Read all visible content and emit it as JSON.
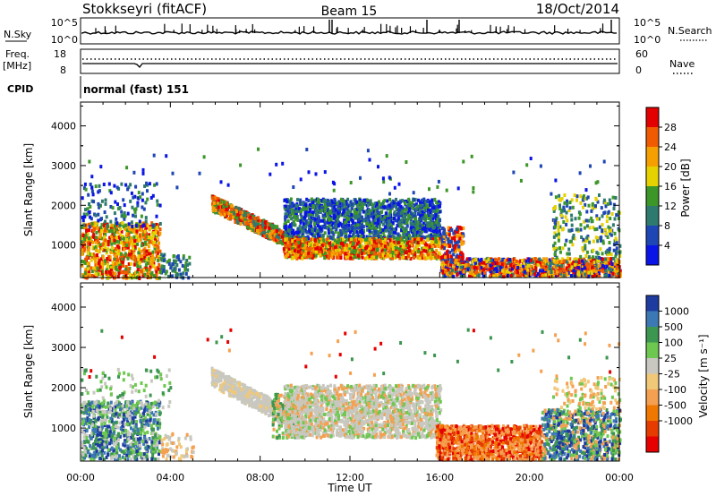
{
  "header": {
    "station": "Stokkseyri (fitACF)",
    "beam": "Beam 15",
    "date": "18/Oct/2014"
  },
  "top_panels": {
    "nsky_label": "N.Sky",
    "nsky_ticks": [
      "10^5",
      "10^0"
    ],
    "nsearch_label": "N.Search",
    "nsearch_ticks": [
      "10^5",
      "10^0"
    ],
    "freq_label": "Freq.",
    "freq_unit": "[MHz]",
    "freq_ticks": [
      "18",
      "8"
    ],
    "nave_label": "Nave",
    "nave_ticks": [
      "60",
      "0"
    ],
    "cpid_label": "CPID",
    "cpid_value": "normal (fast) 151"
  },
  "chart_data": [
    {
      "type": "heatmap",
      "title": "",
      "xlabel": "",
      "ylabel": "Slant Range [km]",
      "x_range_hours": [
        0,
        24
      ],
      "ylim": [
        180,
        4600
      ],
      "yticks": [
        "4000",
        "3000",
        "2000",
        "1000"
      ],
      "ytick_values": [
        4000,
        3000,
        2000,
        1000
      ],
      "colorbar": {
        "label": "Power [dB]",
        "ticks": [
          "28",
          "24",
          "20",
          "16",
          "12",
          "8",
          "4"
        ],
        "colors": [
          "#e30000",
          "#f05a00",
          "#f5a000",
          "#e6d200",
          "#3c9628",
          "#2f7a6e",
          "#1e46b4",
          "#0a14e6"
        ]
      }
    },
    {
      "type": "heatmap",
      "title": "",
      "xlabel": "Time UT",
      "ylabel": "Slant Range [km]",
      "x_range_hours": [
        0,
        24
      ],
      "xticks": [
        "00:00",
        "04:00",
        "08:00",
        "12:00",
        "16:00",
        "20:00",
        "00:00"
      ],
      "xtick_values": [
        0,
        4,
        8,
        12,
        16,
        20,
        24
      ],
      "ylim": [
        180,
        4600
      ],
      "yticks": [
        "4000",
        "3000",
        "2000",
        "1000"
      ],
      "ytick_values": [
        4000,
        3000,
        2000,
        1000
      ],
      "colorbar": {
        "label": "Velocity [m s⁻¹]",
        "ticks": [
          "1000",
          "500",
          "100",
          "25",
          "-25",
          "-100",
          "-500",
          "-1000"
        ],
        "colors": [
          "#1e3ca0",
          "#3c78b4",
          "#3c9650",
          "#6ec850",
          "#c8c8c0",
          "#f0c878",
          "#f5a050",
          "#f07800",
          "#e63c00",
          "#e60000"
        ]
      }
    }
  ]
}
